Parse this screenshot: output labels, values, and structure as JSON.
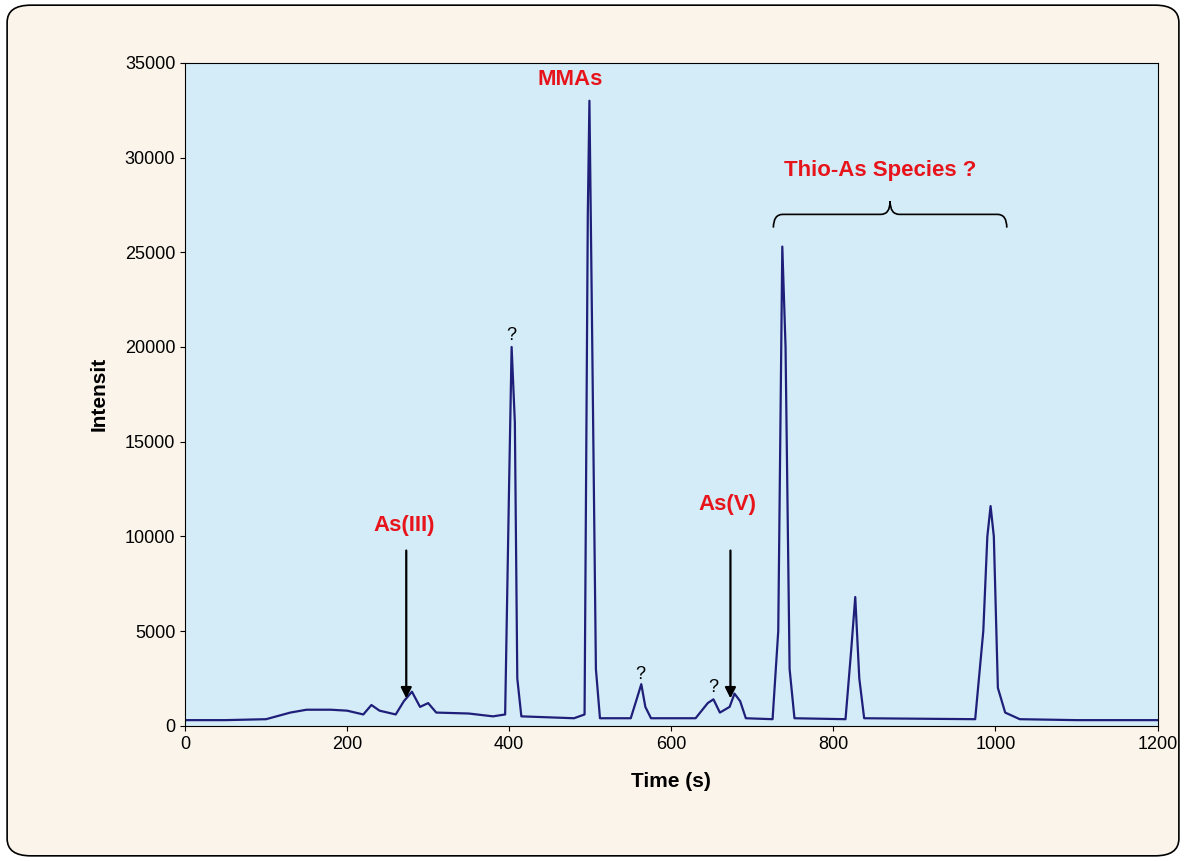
{
  "chart_data": {
    "type": "line",
    "x_label": "Time (s)",
    "y_label": "Intensit",
    "x": [
      0,
      50,
      100,
      130,
      150,
      180,
      200,
      220,
      230,
      240,
      260,
      270,
      280,
      290,
      300,
      310,
      350,
      380,
      395,
      400,
      403,
      407,
      410,
      415,
      480,
      493,
      497,
      499,
      502,
      507,
      512,
      550,
      558,
      563,
      568,
      575,
      630,
      645,
      652,
      660,
      672,
      678,
      685,
      692,
      725,
      732,
      737,
      741,
      746,
      752,
      815,
      822,
      827,
      832,
      838,
      975,
      985,
      990,
      994,
      998,
      1003,
      1012,
      1030,
      1100,
      1200
    ],
    "values": [
      300,
      300,
      350,
      700,
      850,
      850,
      800,
      600,
      1100,
      800,
      600,
      1300,
      1800,
      1000,
      1200,
      700,
      650,
      500,
      600,
      13000,
      20000,
      16000,
      2500,
      500,
      400,
      600,
      27000,
      33000,
      22000,
      3000,
      400,
      400,
      1500,
      2200,
      1000,
      400,
      400,
      1200,
      1400,
      700,
      1000,
      1700,
      1300,
      400,
      350,
      5000,
      25300,
      20000,
      3000,
      400,
      350,
      4000,
      6800,
      2500,
      400,
      350,
      5000,
      10000,
      11600,
      10000,
      2000,
      700,
      350,
      300,
      300
    ],
    "color": "#1f1f7a",
    "xlim": [
      0,
      1200
    ],
    "xticks": [
      0,
      200,
      400,
      600,
      800,
      1000,
      1200
    ],
    "ylim": [
      0,
      35000
    ],
    "yticks": [
      0,
      5000,
      10000,
      15000,
      20000,
      25000,
      30000,
      35000
    ],
    "grid": false,
    "annotations": [
      {
        "text": "As(III)",
        "x": 270,
        "y": 10600,
        "arrow": [
          273,
          9400,
          273,
          1300
        ]
      },
      {
        "text": "MMAs",
        "x": 475,
        "y": 34100
      },
      {
        "text": "?",
        "x": 403,
        "y": 20600
      },
      {
        "text": "?",
        "x": 562,
        "y": 2700
      },
      {
        "text": "?",
        "x": 652,
        "y": 2000
      },
      {
        "text": "As(V)",
        "x": 669,
        "y": 11700,
        "arrow": [
          673,
          9400,
          673,
          1300
        ]
      },
      {
        "text": "Thio-As Species ?",
        "x": 858,
        "y": 29300,
        "brace": [
          726,
          1014,
          27000
        ]
      }
    ]
  }
}
